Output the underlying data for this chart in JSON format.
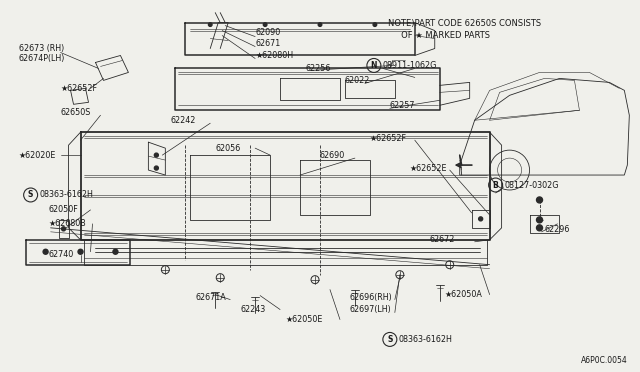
{
  "bg_color": "#f0f0eb",
  "line_color": "#2a2a2a",
  "text_color": "#1a1a1a",
  "diagram_code": "A6P0C.0054",
  "note_line1": "NOTE)PART CODE 62650S CONSISTS",
  "note_line2": "     OF ★ MARKED PARTS",
  "star": "★",
  "font_size": 5.8,
  "lw_main": 1.1,
  "lw_thin": 0.6,
  "lw_detail": 0.4
}
